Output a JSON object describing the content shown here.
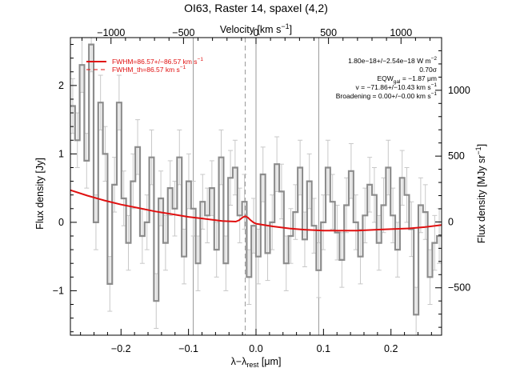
{
  "chart_data": {
    "type": "line",
    "title": "OI63, Raster 14, spaxel (4,2)",
    "xlabel": "λ−λ",
    "xlabel_sub": "rest",
    "xlabel_unit": "[μm]",
    "ylabel": "Flux density [Jy]",
    "top_xlabel": "Velocity [km s",
    "top_xlabel_sup": "−1",
    "top_xlabel_end": "]",
    "right_ylabel": "Flux density [MJy sr",
    "right_ylabel_sup": "−1",
    "right_ylabel_end": "]",
    "xlim": [
      -0.275,
      0.275
    ],
    "ylim": [
      -1.65,
      2.7
    ],
    "top_xlim": [
      -1280,
      1280
    ],
    "right_ylim": [
      -860,
      1400
    ],
    "x_ticks": [
      -0.2,
      -0.1,
      0.0,
      0.1,
      0.2
    ],
    "x_tick_labels": [
      "−0.2",
      "−0.1",
      "0.0",
      "0.1",
      "0.2"
    ],
    "y_ticks": [
      -1,
      0,
      1,
      2
    ],
    "y_tick_labels": [
      "−1",
      "0",
      "1",
      "2"
    ],
    "top_ticks": [
      -1000,
      -500,
      0,
      500,
      1000
    ],
    "top_tick_labels": [
      "−1000",
      "−500",
      "0",
      "500",
      "1000"
    ],
    "right_ticks": [
      -500,
      0,
      500,
      1000
    ],
    "right_tick_labels": [
      "−500",
      "0",
      "500",
      "1000"
    ],
    "vlines_solid": [
      -0.093,
      0.0,
      0.093
    ],
    "vline_dashed": -0.016,
    "legend": {
      "position": "top-left",
      "entries": [
        {
          "label": "FWHM=86.57+/−86.57 km s",
          "sup": "−1",
          "style": "solid",
          "color": "#e01010"
        },
        {
          "label": "FWHM_th=86.57 km s",
          "sup": "−1",
          "style": "dashed",
          "color": "#e01010"
        }
      ]
    },
    "annotations": [
      {
        "text": "1.80e−18+/−2.54e−18 W m",
        "sup": "−2"
      },
      {
        "text": "0.70σ"
      },
      {
        "text": "EQW",
        "sub": "gal",
        "text2": " = −1.87 μm"
      },
      {
        "text": "v = −71.86+/−10.43 km s",
        "sup": "−1"
      },
      {
        "text": "Broadening = 0.00+/−0.00 km s",
        "sup": "−1"
      }
    ],
    "series": [
      {
        "kind": "step",
        "color": "#8c8c8c",
        "x": [
          -0.275,
          -0.2681,
          -0.2613,
          -0.2544,
          -0.2475,
          -0.2406,
          -0.2338,
          -0.2269,
          -0.22,
          -0.2131,
          -0.2063,
          -0.1994,
          -0.1925,
          -0.1856,
          -0.1788,
          -0.1719,
          -0.165,
          -0.1581,
          -0.1513,
          -0.1444,
          -0.1375,
          -0.1306,
          -0.1238,
          -0.1169,
          -0.11,
          -0.1031,
          -0.0963,
          -0.0894,
          -0.0825,
          -0.0756,
          -0.0688,
          -0.0619,
          -0.055,
          -0.0481,
          -0.0413,
          -0.0344,
          -0.0275,
          -0.0206,
          -0.0138,
          -0.0069,
          0.0,
          0.0069,
          0.0138,
          0.0206,
          0.0275,
          0.0344,
          0.0413,
          0.0481,
          0.055,
          0.0619,
          0.0688,
          0.0756,
          0.0825,
          0.0894,
          0.0963,
          0.1031,
          0.11,
          0.1169,
          0.1238,
          0.1306,
          0.1375,
          0.1444,
          0.1513,
          0.1581,
          0.165,
          0.1719,
          0.1788,
          0.1856,
          0.1925,
          0.1994,
          0.2063,
          0.2131,
          0.22,
          0.2269,
          0.2338,
          0.2406,
          0.2475,
          0.2544,
          0.2613,
          0.2681
        ],
        "values": [
          1.7,
          1.2,
          2.3,
          0.9,
          2.6,
          0.0,
          1.75,
          1.0,
          -0.9,
          0.55,
          1.75,
          0.35,
          -0.3,
          0.6,
          1.1,
          -0.2,
          0.0,
          0.95,
          -1.15,
          0.35,
          -0.3,
          0.5,
          0.2,
          0.95,
          -0.5,
          0.6,
          0.2,
          -0.6,
          0.3,
          0.1,
          0.5,
          -0.4,
          0.95,
          -0.6,
          0.65,
          0.8,
          0.1,
          0.3,
          -0.8,
          -0.05,
          -0.5,
          0.7,
          -0.45,
          0.0,
          0.85,
          0.45,
          -0.6,
          -0.2,
          0.15,
          0.8,
          -0.25,
          0.6,
          -0.05,
          -0.7,
          0.0,
          0.8,
          0.3,
          -0.15,
          -0.55,
          0.25,
          0.75,
          0.0,
          -0.5,
          0.1,
          0.55,
          0.4,
          -0.3,
          0.25,
          0.8,
          0.1,
          -0.4,
          0.65,
          0.4,
          -0.1,
          -1.35,
          0.25,
          0.15,
          -0.8,
          -0.3,
          -0.2
        ],
        "errors": [
          0.4,
          0.4,
          0.4,
          0.4,
          0.4,
          0.4,
          0.4,
          0.4,
          0.4,
          0.4,
          0.4,
          0.4,
          0.4,
          0.4,
          0.4,
          0.4,
          0.4,
          0.4,
          0.4,
          0.4,
          0.4,
          0.4,
          0.4,
          0.4,
          0.4,
          0.4,
          0.4,
          0.4,
          0.4,
          0.4,
          0.4,
          0.4,
          0.4,
          0.4,
          0.4,
          0.4,
          0.4,
          0.4,
          0.4,
          0.4,
          0.4,
          0.4,
          0.4,
          0.4,
          0.4,
          0.4,
          0.4,
          0.4,
          0.4,
          0.4,
          0.4,
          0.4,
          0.4,
          0.4,
          0.4,
          0.4,
          0.4,
          0.4,
          0.4,
          0.4,
          0.4,
          0.4,
          0.4,
          0.4,
          0.4,
          0.4,
          0.4,
          0.4,
          0.4,
          0.4,
          0.4,
          0.4,
          0.4,
          0.4,
          0.4,
          0.4,
          0.4,
          0.4,
          0.4,
          0.4
        ]
      },
      {
        "kind": "line",
        "color": "#e01010",
        "x": [
          -0.275,
          -0.25,
          -0.225,
          -0.2,
          -0.175,
          -0.15,
          -0.125,
          -0.1,
          -0.075,
          -0.05,
          -0.03,
          -0.025,
          -0.02,
          -0.016,
          -0.012,
          -0.008,
          -0.004,
          0.0,
          0.025,
          0.05,
          0.075,
          0.1,
          0.125,
          0.15,
          0.175,
          0.2,
          0.225,
          0.25,
          0.275
        ],
        "values": [
          0.47,
          0.39,
          0.32,
          0.26,
          0.21,
          0.16,
          0.12,
          0.08,
          0.05,
          0.02,
          0.01,
          0.03,
          0.07,
          0.09,
          0.07,
          0.03,
          0.0,
          -0.02,
          -0.06,
          -0.09,
          -0.11,
          -0.12,
          -0.12,
          -0.12,
          -0.11,
          -0.1,
          -0.09,
          -0.07,
          -0.04
        ]
      }
    ]
  }
}
